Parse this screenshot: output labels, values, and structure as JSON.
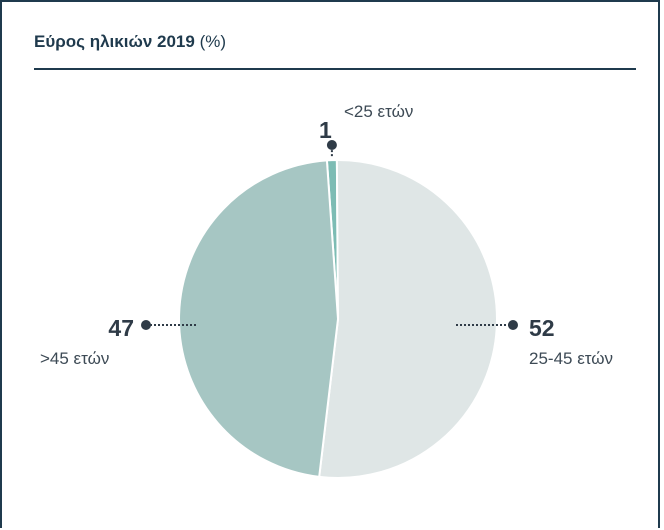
{
  "title": {
    "main": "Εύρος ηλικιών 2019",
    "unit": "(%)"
  },
  "chart_data": {
    "type": "pie",
    "title": "Εύρος ηλικιών 2019 (%)",
    "categories": [
      "<25 ετών",
      "25-45 ετών",
      ">45 ετών"
    ],
    "values": [
      1,
      52,
      47
    ],
    "value_labels": [
      "1",
      "52",
      "47"
    ],
    "colors": [
      "#7dbcb4",
      "#dfe6e6",
      "#a6c6c3"
    ],
    "legend": "none"
  }
}
